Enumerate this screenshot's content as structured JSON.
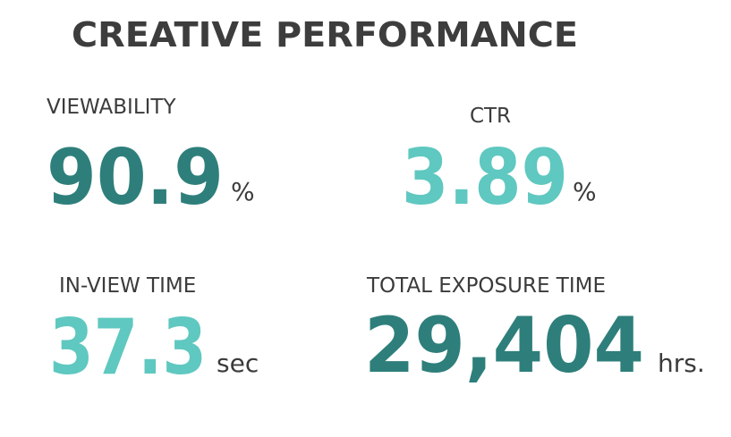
{
  "header": {
    "title": "CREATIVE PERFORMANCE"
  },
  "metrics": [
    {
      "label": "VIEWABILITY",
      "value": "90.9",
      "unit": "%"
    },
    {
      "label": "CTR",
      "value": "3.89",
      "unit": "%"
    },
    {
      "label": "IN-VIEW TIME",
      "value": "37.3",
      "unit": "sec"
    },
    {
      "label": "TOTAL EXPOSURE TIME",
      "value": "29,404",
      "unit": "hrs."
    }
  ]
}
